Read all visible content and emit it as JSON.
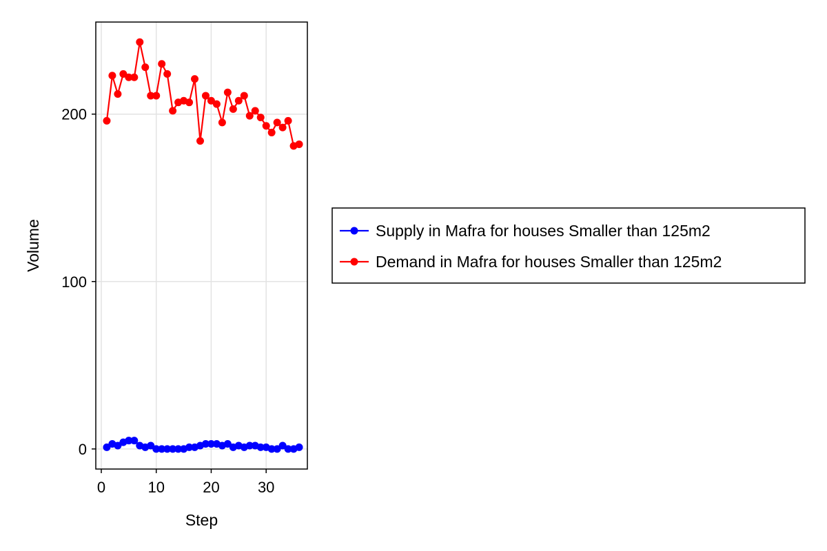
{
  "chart_data": {
    "type": "line",
    "title": "",
    "xlabel": "Step",
    "ylabel": "Volume",
    "xlim": [
      -1,
      37.5
    ],
    "ylim": [
      -12,
      255
    ],
    "x_ticks": [
      0,
      10,
      20,
      30
    ],
    "y_ticks": [
      0,
      100,
      200
    ],
    "grid": true,
    "legend_position": "right",
    "x": [
      1,
      2,
      3,
      4,
      5,
      6,
      7,
      8,
      9,
      10,
      11,
      12,
      13,
      14,
      15,
      16,
      17,
      18,
      19,
      20,
      21,
      22,
      23,
      24,
      25,
      26,
      27,
      28,
      29,
      30,
      31,
      32,
      33,
      34,
      35,
      36
    ],
    "series": [
      {
        "name": "Supply in Mafra for houses Smaller than 125m2",
        "color": "#0000ff",
        "values": [
          1,
          3,
          2,
          4,
          5,
          5,
          2,
          1,
          2,
          0,
          0,
          0,
          0,
          0,
          0,
          1,
          1,
          2,
          3,
          3,
          3,
          2,
          3,
          1,
          2,
          1,
          2,
          2,
          1,
          1,
          0,
          0,
          2,
          0,
          0,
          1
        ]
      },
      {
        "name": "Demand in Mafra for houses Smaller than 125m2",
        "color": "#ff0000",
        "values": [
          196,
          223,
          212,
          224,
          222,
          222,
          243,
          228,
          211,
          211,
          230,
          224,
          202,
          207,
          208,
          207,
          221,
          184,
          211,
          208,
          206,
          195,
          213,
          203,
          208,
          211,
          199,
          202,
          198,
          193,
          189,
          195,
          192,
          196,
          181,
          182
        ]
      }
    ]
  }
}
